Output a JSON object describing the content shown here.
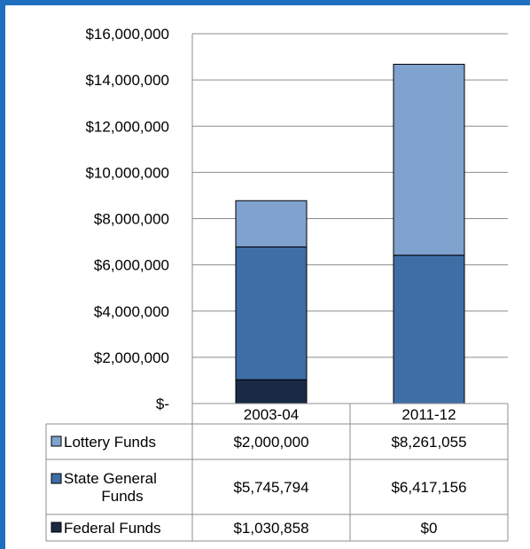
{
  "chart_data": {
    "type": "bar",
    "stacked": true,
    "categories": [
      "2003-04",
      "2011-12"
    ],
    "series": [
      {
        "name": "Federal Funds",
        "color": "#1b2a44",
        "values": [
          1030858,
          0
        ],
        "labels": [
          "$1,030,858",
          "$0"
        ]
      },
      {
        "name": "State General Funds",
        "color": "#3e6ea6",
        "values": [
          5745794,
          6417156
        ],
        "labels": [
          "$5,745,794",
          "$6,417,156"
        ]
      },
      {
        "name": "Lottery Funds",
        "color": "#7fa2cf",
        "values": [
          2000000,
          8261055
        ],
        "labels": [
          "$2,000,000",
          "$8,261,055"
        ]
      }
    ],
    "ylim": [
      0,
      16000000
    ],
    "y_ticks": [
      {
        "value": 16000000,
        "label": "$16,000,000"
      },
      {
        "value": 14000000,
        "label": "$14,000,000"
      },
      {
        "value": 12000000,
        "label": "$12,000,000"
      },
      {
        "value": 10000000,
        "label": "$10,000,000"
      },
      {
        "value": 8000000,
        "label": "$8,000,000"
      },
      {
        "value": 6000000,
        "label": "$6,000,000"
      },
      {
        "value": 4000000,
        "label": "$4,000,000"
      },
      {
        "value": 2000000,
        "label": "$2,000,000"
      },
      {
        "value": 0,
        "label": "$-"
      }
    ],
    "grid": true,
    "legend": "data-table",
    "table_rows": [
      {
        "series_index": 2,
        "label_lines": [
          "Lottery Funds"
        ]
      },
      {
        "series_index": 1,
        "label_lines": [
          "State General",
          "Funds"
        ]
      },
      {
        "series_index": 0,
        "label_lines": [
          "Federal Funds"
        ]
      }
    ]
  }
}
